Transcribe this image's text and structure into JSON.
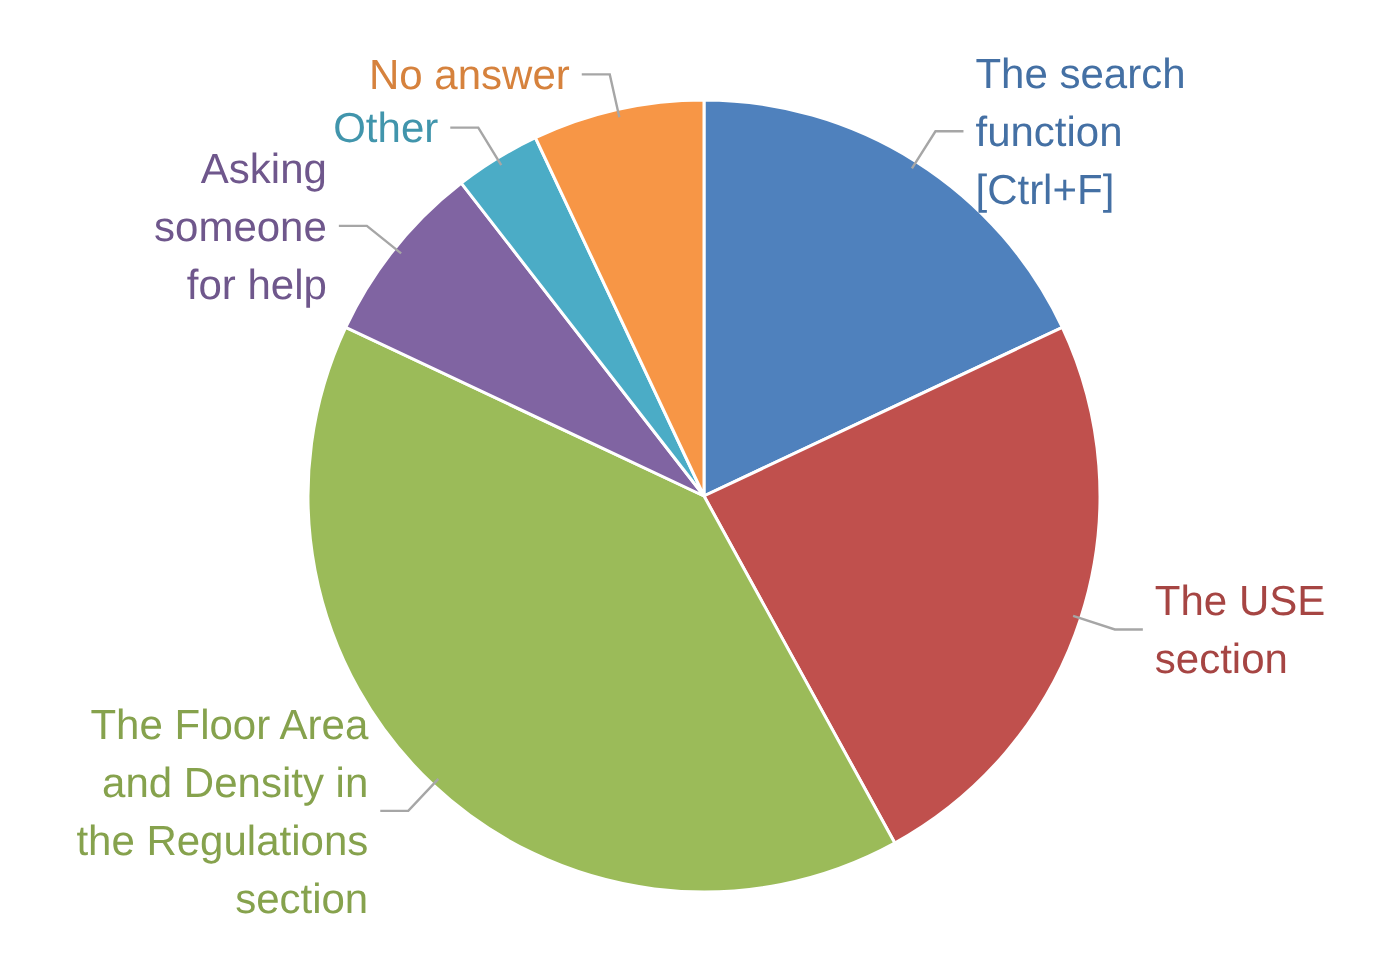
{
  "chart_data": {
    "type": "pie",
    "categories": [
      "The search\nfunction\n[Ctrl+F]",
      "The USE\nsection",
      "The Floor Area\nand Density in\nthe Regulations\nsection",
      "Asking\nsomeone\nfor help",
      "Other",
      "No answer"
    ],
    "values": [
      18,
      24,
      40,
      7.5,
      3.5,
      7
    ],
    "colors": [
      "#4f81bd",
      "#c0504d",
      "#9bbb59",
      "#8064a2",
      "#4bacc6",
      "#f79646"
    ]
  }
}
